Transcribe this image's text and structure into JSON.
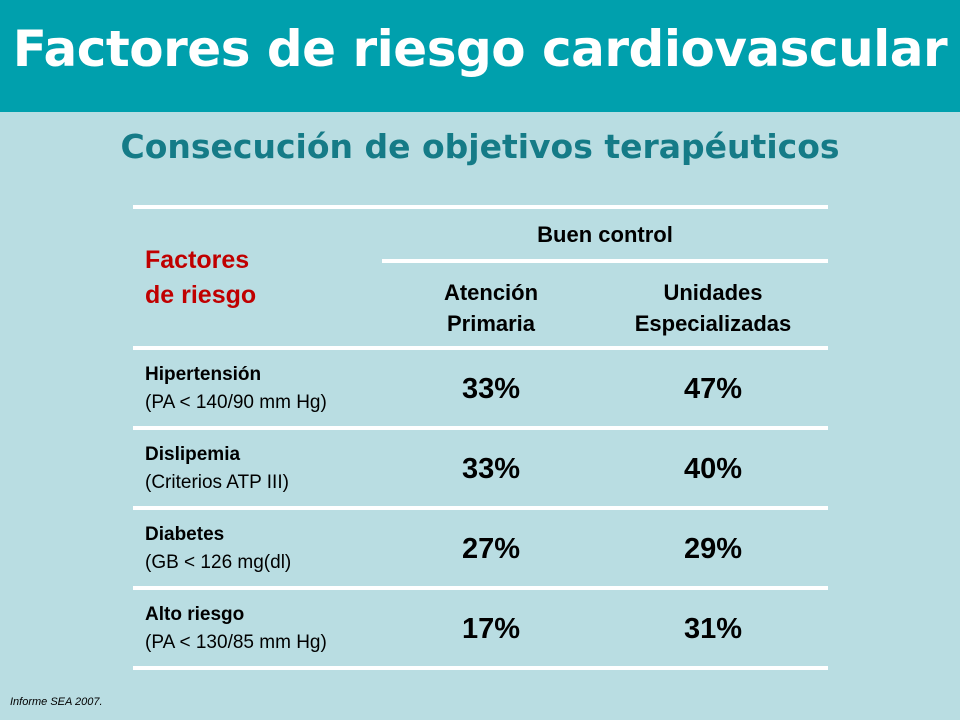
{
  "header": {
    "title": "Factores de riesgo cardiovascular"
  },
  "subtitle": "Consecución de objetivos terapéuticos",
  "table": {
    "factor_heading_line1": "Factores",
    "factor_heading_line2": "de riesgo",
    "group_heading": "Buen control",
    "columns": [
      {
        "line1": "Atención",
        "line2": "Primaria"
      },
      {
        "line1": "Unidades",
        "line2": "Especializadas"
      }
    ],
    "rows": [
      {
        "name": "Hipertensión",
        "detail": "(PA < 140/90 mm Hg)",
        "values": [
          "33%",
          "47%"
        ]
      },
      {
        "name": "Dislipemia",
        "detail": "(Criterios ATP III)",
        "values": [
          "33%",
          "40%"
        ]
      },
      {
        "name": "Diabetes",
        "detail": "(GB < 126 mg(dl)",
        "values": [
          "27%",
          "29%"
        ]
      },
      {
        "name": "Alto riesgo",
        "detail": "(PA < 130/85 mm Hg)",
        "values": [
          "17%",
          "31%"
        ]
      }
    ]
  },
  "footnote": "Informe SEA 2007."
}
